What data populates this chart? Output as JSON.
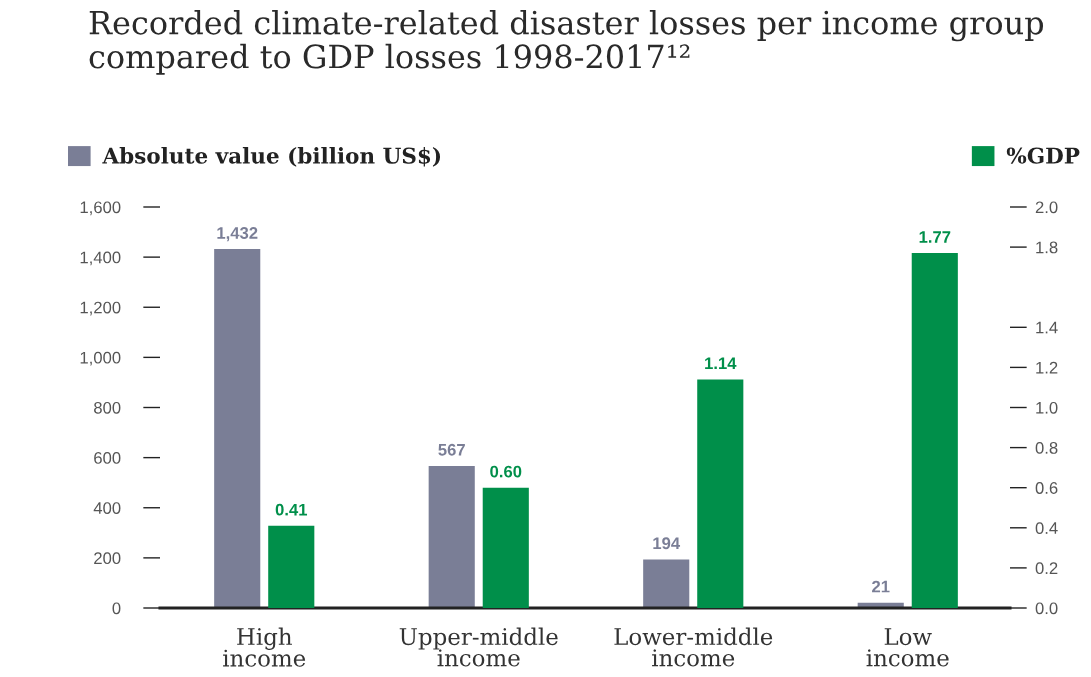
{
  "chart_data": {
    "type": "bar",
    "title": "Recorded climate-related disaster losses per income group compared to GDP losses 1998-2017¹²",
    "categories": [
      "High income",
      "Upper-middle income",
      "Lower-middle income",
      "Low income"
    ],
    "series": [
      {
        "name": "Absolute value (billion US$)",
        "color": "#7a7e96",
        "values": [
          1432,
          567,
          194,
          21
        ],
        "value_labels": [
          "1,432",
          "567",
          "194",
          "21"
        ]
      },
      {
        "name": "%GDP",
        "color": "#008f4a",
        "axis": "y2",
        "values": [
          0.41,
          0.6,
          1.14,
          1.77
        ],
        "value_labels": [
          "0.41",
          "0.60",
          "1.14",
          "1.77"
        ]
      }
    ],
    "ylim": [
      0,
      1600
    ],
    "yticks": [
      0,
      200,
      400,
      600,
      800,
      {
        "value": 1000,
        "label": "1,000"
      },
      {
        "value": 1200,
        "label": "1,200"
      },
      {
        "value": 1400,
        "label": "1,400"
      },
      {
        "value": 1600,
        "label": "1,600"
      }
    ],
    "y2lim": [
      0,
      2.0
    ],
    "y2ticks": [
      {
        "value": 0,
        "label": "0.0"
      },
      0.2,
      0.4,
      0.6,
      0.8,
      {
        "value": 1.0,
        "label": "1.0"
      },
      1.2,
      1.4,
      1.8,
      {
        "value": 2.0,
        "label": "2.0"
      }
    ],
    "legend": "top",
    "grid": false
  }
}
